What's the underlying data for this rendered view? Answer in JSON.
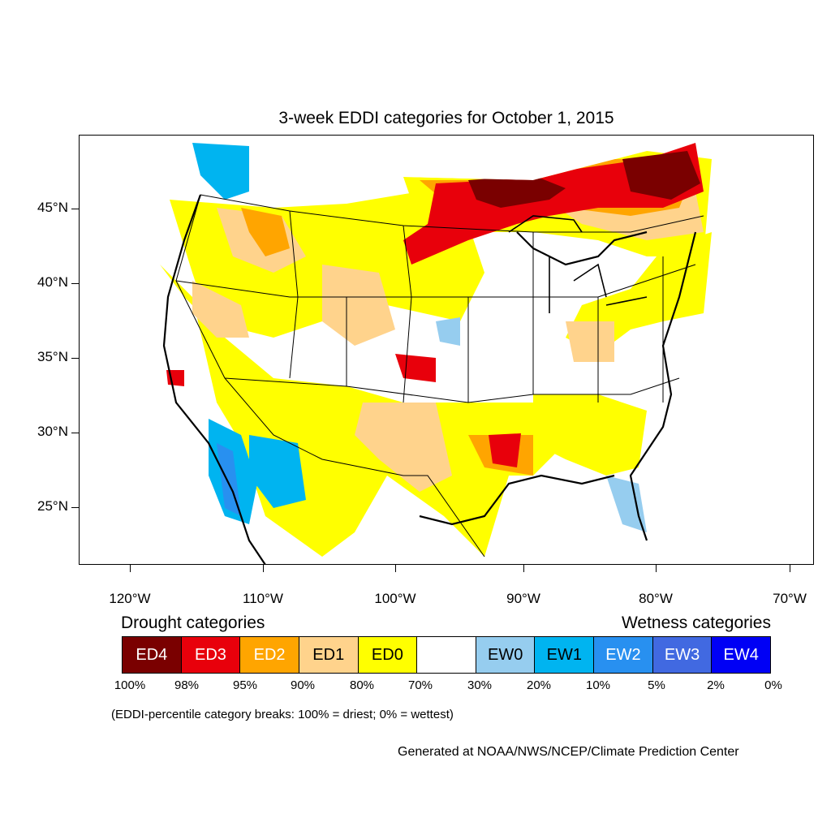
{
  "title": "3-week EDDI categories for October 1, 2015",
  "latitude_labels": [
    "45°N",
    "40°N",
    "35°N",
    "30°N",
    "25°N"
  ],
  "longitude_labels": [
    "120°W",
    "110°W",
    "100°W",
    "90°W",
    "80°W",
    "70°W"
  ],
  "legend": {
    "drought_heading": "Drought categories",
    "wetness_heading": "Wetness categories",
    "categories": [
      {
        "label": "ED4",
        "color": "#7a0000",
        "text_color": "#ffffff"
      },
      {
        "label": "ED3",
        "color": "#e8000b",
        "text_color": "#ffffff"
      },
      {
        "label": "ED2",
        "color": "#ffa500",
        "text_color": "#ffffff"
      },
      {
        "label": "ED1",
        "color": "#ffd38c",
        "text_color": "#000000"
      },
      {
        "label": "ED0",
        "color": "#ffff00",
        "text_color": "#000000"
      },
      {
        "label": "",
        "color": "#ffffff",
        "text_color": "#000000"
      },
      {
        "label": "EW0",
        "color": "#96cdef",
        "text_color": "#000000"
      },
      {
        "label": "EW1",
        "color": "#00b4f0",
        "text_color": "#000000"
      },
      {
        "label": "EW2",
        "color": "#2890f0",
        "text_color": "#ffffff"
      },
      {
        "label": "EW3",
        "color": "#4169e1",
        "text_color": "#ffffff"
      },
      {
        "label": "EW4",
        "color": "#0000f5",
        "text_color": "#ffffff"
      }
    ],
    "percentile_breaks": [
      "100%",
      "98%",
      "95%",
      "90%",
      "80%",
      "70%",
      "30%",
      "20%",
      "10%",
      "5%",
      "2%",
      "0%"
    ]
  },
  "footnote": "(EDDI-percentile category breaks: 100% = driest; 0% = wettest)",
  "credit": "Generated at NOAA/NWS/NCEP/Climate Prediction Center"
}
